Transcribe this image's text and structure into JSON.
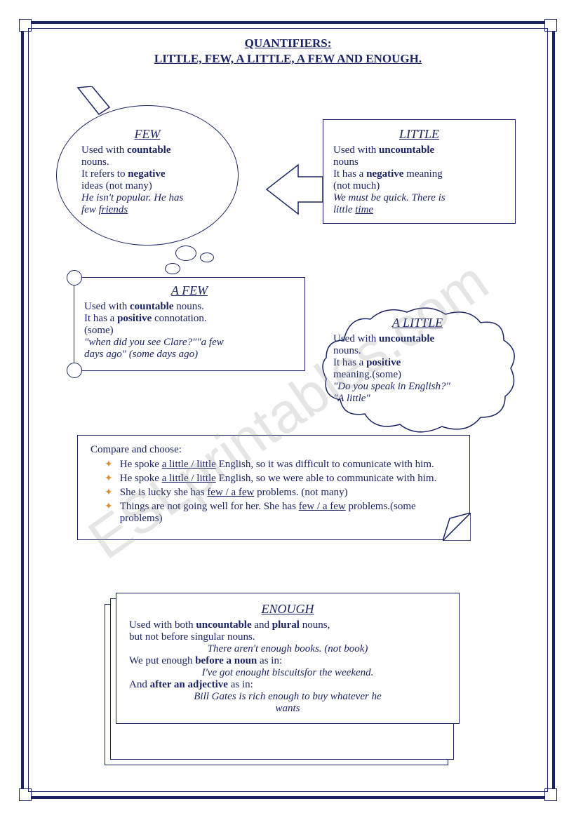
{
  "title": {
    "line1": "QUANTIFIERS:",
    "line2": "LITTLE, FEW, A LITTLE, A FEW AND ENOUGH."
  },
  "few": {
    "heading": "FEW",
    "line1a": "Used with ",
    "line1b": "countable",
    "line2": "nouns.",
    "line3a": "It refers to ",
    "line3b": "negative",
    "line4": "ideas (not many)",
    "example1": "He isn't popular. He has",
    "example2a": "few ",
    "example2b": "friends"
  },
  "little": {
    "heading": "LITTLE",
    "line1a": "Used with ",
    "line1b": "uncountable",
    "line2": "nouns",
    "line3a": "It has a ",
    "line3b": "negative",
    "line3c": " meaning",
    "line4": "(not much)",
    "example1": "We must be quick. There is",
    "example2a": "little ",
    "example2b": "time"
  },
  "afew": {
    "heading": "A FEW",
    "line1a": "Used with ",
    "line1b": "countable",
    "line1c": " nouns.",
    "line2a": "It has a ",
    "line2b": "positive",
    "line2c": " connotation.",
    "line3": "(some)",
    "example1": "\"when did you see Clare?\"\"a few",
    "example2": "days ago\" (some days ago)"
  },
  "alittle": {
    "heading": "A LITTLE",
    "line1a": "Used with ",
    "line1b": "uncountable",
    "line2": "nouns.",
    "line3a": "It has a ",
    "line3b": "positive",
    "line4": "meaning.(some)",
    "example1": "\"Do you speak in English?\"",
    "example2": "\"A little\""
  },
  "compare": {
    "heading": "Compare and choose:",
    "items": [
      {
        "text1": "He spoke ",
        "underlined": "a little / little",
        "text2": " English, so it was difficult to comunicate with him."
      },
      {
        "text1": "He spoke ",
        "underlined": "a little / little",
        "text2": " English, so we were able to communicate with him."
      },
      {
        "text1": "She is lucky she has ",
        "underlined": "few / a few",
        "text2": " problems. (not many)"
      },
      {
        "text1": "Things are not going well for her. She has ",
        "underlined": "few / a few",
        "text2": " problems.(some problems)"
      }
    ]
  },
  "enough": {
    "heading": "ENOUGH",
    "line1a": "Used with both ",
    "line1b": "uncountable",
    "line1c": " and ",
    "line1d": "plural",
    "line1e": " nouns,",
    "line2": "but not before singular nouns.",
    "example1": "There aren't enough books. (not book)",
    "line3a": "We put enough ",
    "line3b": "before a noun",
    "line3c": " as in:",
    "example2": "I've got enought biscuitsfor the weekend.",
    "line4a": "And ",
    "line4b": "after an adjective",
    "line4c": " as in:",
    "example3a": "Bill Gates is rich enough to buy whatever he",
    "example3b": "wants"
  },
  "watermark": "ESLprintables.com",
  "colors": {
    "navy": "#1a2464",
    "bullet": "#d4923a"
  }
}
